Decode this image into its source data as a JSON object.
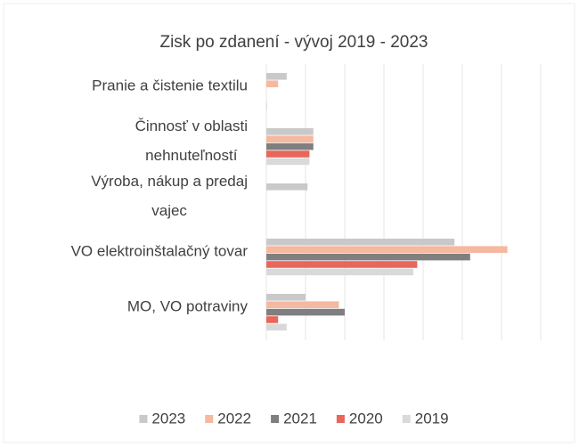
{
  "chart_data": {
    "type": "hbar",
    "title": "Zisk po zdanení - vývoj 2019 - 2023",
    "categories": [
      [
        "Pranie a čistenie textilu"
      ],
      [
        "Činnosť v oblasti",
        "nehnuteľností"
      ],
      [
        "Výroba, nákup a predaj",
        "vajec"
      ],
      [
        "VO elektroinštalačný tovar"
      ],
      [
        "MO, VO potraviny"
      ]
    ],
    "series": [
      {
        "name": "2023",
        "color": "#c9c9c9",
        "values": [
          0.52,
          1.2,
          1.05,
          4.8,
          1.0
        ]
      },
      {
        "name": "2022",
        "color": "#f4b9a0",
        "values": [
          0.3,
          1.2,
          0,
          6.15,
          1.85
        ]
      },
      {
        "name": "2021",
        "color": "#7f7f7f",
        "values": [
          0,
          1.2,
          0,
          5.2,
          2.0
        ]
      },
      {
        "name": "2020",
        "color": "#e8675a",
        "values": [
          0,
          1.1,
          0,
          3.85,
          0.3
        ]
      },
      {
        "name": "2019",
        "color": "#d9d9d9",
        "values": [
          0.02,
          1.1,
          0,
          3.75,
          0.52
        ]
      }
    ],
    "xlim": [
      0,
      7
    ],
    "xticks": [
      0,
      1,
      2,
      3,
      4,
      5,
      6,
      7
    ],
    "tick_labels": false,
    "grid": true,
    "legend": "bottom"
  }
}
